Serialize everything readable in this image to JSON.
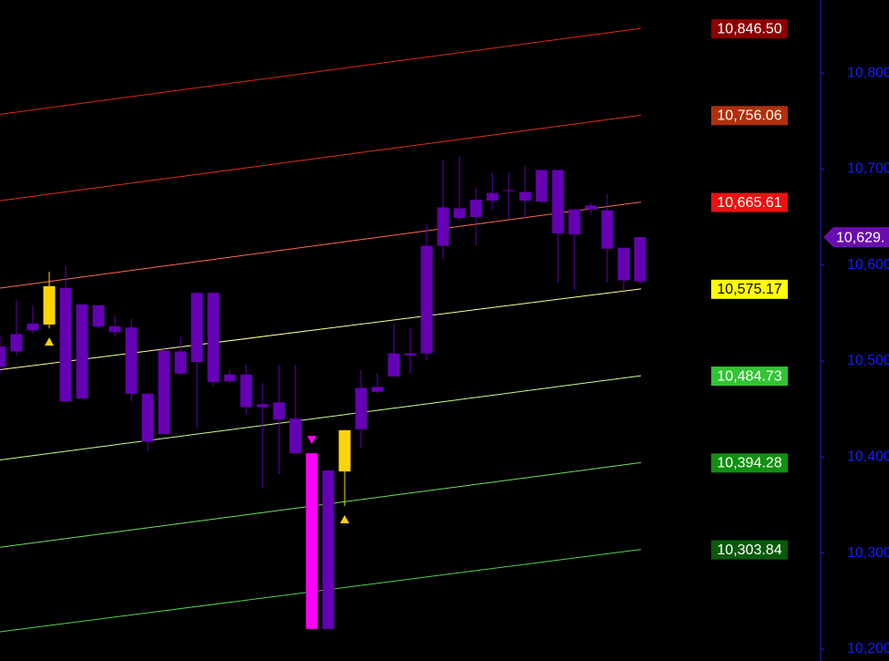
{
  "chart_data": {
    "type": "candlestick",
    "ylim": [
      10187.6,
      10876
    ],
    "yticks": [
      {
        "value": 10800,
        "label": "10,800"
      },
      {
        "value": 10700,
        "label": "10,700"
      },
      {
        "value": 10600,
        "label": "10,600"
      },
      {
        "value": 10500,
        "label": "10,500"
      },
      {
        "value": 10400,
        "label": "10,400"
      },
      {
        "value": 10300,
        "label": "10,300"
      },
      {
        "value": 10200,
        "label": "10,200"
      }
    ],
    "axis_color": "#1a1aff",
    "open": [
      10515,
      10510,
      10539,
      10538,
      10576,
      10461,
      10558,
      10536,
      10535,
      10466,
      10424,
      10510,
      10499,
      10571,
      10486,
      10486,
      10455,
      10457,
      10440,
      10404,
      10221,
      10385,
      10429,
      10473,
      10484,
      10506,
      10508,
      10620,
      10659,
      10650,
      10667,
      10677,
      10676,
      10666,
      10699,
      10632,
      10662,
      10657,
      10618,
      10583
    ],
    "high": [
      10525,
      10563,
      10558,
      10593,
      10599,
      10559,
      10558,
      10548,
      10544,
      10466,
      10515,
      10525,
      10571,
      10571,
      10491,
      10496,
      10477,
      10496,
      10496,
      10404,
      10386,
      10428,
      10491,
      10487,
      10539,
      10534,
      10643,
      10710,
      10713,
      10681,
      10696,
      10696,
      10703,
      10699,
      10699,
      10658,
      10665,
      10674,
      10618,
      10629
    ],
    "low": [
      10487,
      10506,
      10529,
      10534,
      10458,
      10461,
      10534,
      10525,
      10458,
      10406,
      10424,
      10485,
      10430,
      10474,
      10477,
      10444,
      10368,
      10382,
      10403,
      10221,
      10221,
      10349,
      10409,
      10466,
      10484,
      10487,
      10501,
      10605,
      10646,
      10620,
      10658,
      10648,
      10648,
      10664,
      10582,
      10574,
      10653,
      10582,
      10574,
      10580
    ],
    "close": [
      10494,
      10528,
      10532,
      10578,
      10458,
      10559,
      10536,
      10530,
      10466,
      10416,
      10511,
      10487,
      10571,
      10478,
      10479,
      10452,
      10452,
      10439,
      10404,
      10221,
      10386,
      10428,
      10472,
      10468,
      10508,
      10508,
      10620,
      10660,
      10649,
      10668,
      10675,
      10678,
      10667,
      10699,
      10633,
      10658,
      10658,
      10617,
      10584,
      10629
    ],
    "colors": [
      "#6600b4",
      "#6600b4",
      "#6600b4",
      "#ffd400",
      "#6600b4",
      "#6600b4",
      "#6600b4",
      "#6600b4",
      "#6600b4",
      "#6600b4",
      "#6600b4",
      "#6600b4",
      "#6600b4",
      "#6600b4",
      "#6600b4",
      "#6600b4",
      "#6600b4",
      "#6600b4",
      "#6600b4",
      "#ff00ff",
      "#6600b4",
      "#ffd400",
      "#6600b4",
      "#6600b4",
      "#6600b4",
      "#6600b4",
      "#6600b4",
      "#6600b4",
      "#6600b4",
      "#6600b4",
      "#6600b4",
      "#6600b4",
      "#6600b4",
      "#6600b4",
      "#6600b4",
      "#6600b4",
      "#6600b4",
      "#6600b4",
      "#6600b4",
      "#6600b4"
    ],
    "signals": [
      null,
      null,
      null,
      "up",
      null,
      null,
      null,
      null,
      null,
      null,
      null,
      null,
      null,
      null,
      null,
      null,
      null,
      null,
      null,
      "down",
      null,
      "up",
      null,
      null,
      null,
      null,
      null,
      null,
      null,
      null,
      null,
      null,
      null,
      null,
      null,
      null,
      null,
      null,
      null,
      null
    ],
    "channels": [
      {
        "value": 10846.5,
        "label": "10,846.50",
        "start": 10757,
        "line_color": "#d8281e",
        "label_color": "#8b0000",
        "text_color": "#ffffff"
      },
      {
        "value": 10756.06,
        "label": "10,756.06",
        "start": 10667,
        "line_color": "#e0301e",
        "label_color": "#b0300c",
        "text_color": "#ffffff"
      },
      {
        "value": 10665.61,
        "label": "10,665.61",
        "start": 10576,
        "line_color": "#ff6a55",
        "label_color": "#ee1010",
        "text_color": "#ffffff"
      },
      {
        "value": 10575.17,
        "label": "10,575.17",
        "start": 10491,
        "line_color": "#ffff90",
        "label_color": "#ffff00",
        "text_color": "#000000"
      },
      {
        "value": 10484.73,
        "label": "10,484.73",
        "start": 10397,
        "line_color": "#c8ff90",
        "label_color": "#33c433",
        "text_color": "#ffffff"
      },
      {
        "value": 10394.28,
        "label": "10,394.28",
        "start": 10306,
        "line_color": "#70e060",
        "label_color": "#119011",
        "text_color": "#ffffff"
      },
      {
        "value": 10303.84,
        "label": "10,303.84",
        "start": 10218,
        "line_color": "#50d050",
        "label_color": "#0a5a0a",
        "text_color": "#ffffff"
      }
    ],
    "last_price": {
      "value": 10629,
      "label": "10,629.",
      "color": "#6a0db0"
    }
  }
}
